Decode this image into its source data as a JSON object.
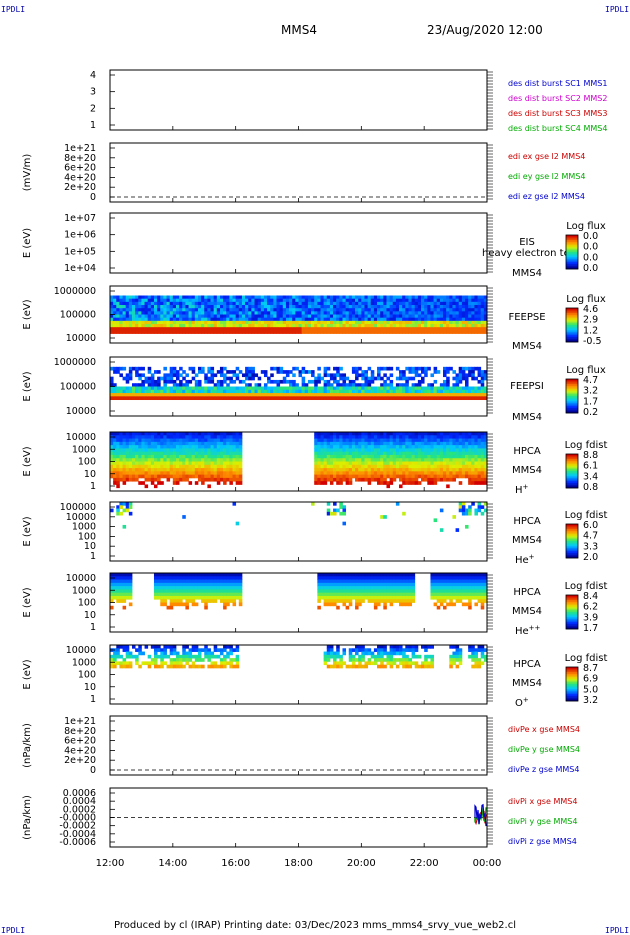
{
  "header": {
    "spacecraft": "MMS4",
    "datetime": "23/Aug/2020 12:00",
    "corner_label": "IPDLI"
  },
  "footer": {
    "text": "Produced by cl (IRAP)   Printing date: 03/Dec/2023   mms_mms4_srvy_vue_web2.cl"
  },
  "x_axis": {
    "ticks": [
      "12:00",
      "14:00",
      "16:00",
      "18:00",
      "20:00",
      "22:00",
      "00:00"
    ]
  },
  "chart_data": [
    {
      "id": "burst",
      "type": "line",
      "y_ticks": [
        "4",
        "3",
        "2",
        "1"
      ],
      "legend": [
        {
          "text": "des dist burst SC1 MMS1",
          "color": "#0000cc"
        },
        {
          "text": "des dist burst SC2 MMS2",
          "color": "#cc00cc"
        },
        {
          "text": "des dist burst SC3 MMS3",
          "color": "#cc0000"
        },
        {
          "text": "des dist burst SC4 MMS4",
          "color": "#00aa00"
        }
      ]
    },
    {
      "id": "edi",
      "type": "line",
      "ylabel": "(mV/m)",
      "y_ticks": [
        "1e+21",
        "8e+20",
        "6e+20",
        "4e+20",
        "2e+20",
        "0"
      ],
      "legend": [
        {
          "text": "edi ex gse l2 MMS4",
          "color": "#cc0000"
        },
        {
          "text": "edi ey gse l2 MMS4",
          "color": "#00aa00"
        },
        {
          "text": "edi ez gse l2 MMS4",
          "color": "#0000cc"
        }
      ]
    },
    {
      "id": "eis",
      "type": "heatmap",
      "ylabel": "E (eV)",
      "y_ticks": [
        "1e+07",
        "1e+06",
        "1e+05",
        "1e+04"
      ],
      "label": "EIS",
      "sublabel": "MMS4",
      "overlay_text": "heavy electron te",
      "colorbar": {
        "title": "Log flux",
        "ticks": [
          "0.0",
          "0.0",
          "0.0",
          "0.0"
        ]
      }
    },
    {
      "id": "feepse",
      "type": "heatmap",
      "ylabel": "E (eV)",
      "y_ticks": [
        "1000000",
        "100000",
        "10000"
      ],
      "label": "FEEPSE",
      "sublabel": "MMS4",
      "colorbar": {
        "title": "Log flux",
        "ticks": [
          "4.6",
          "2.9",
          "1.2",
          "-0.5"
        ]
      }
    },
    {
      "id": "feepsi",
      "type": "heatmap",
      "ylabel": "E (eV)",
      "y_ticks": [
        "1000000",
        "100000",
        "10000"
      ],
      "label": "FEEPSI",
      "sublabel": "MMS4",
      "colorbar": {
        "title": "Log flux",
        "ticks": [
          "4.7",
          "3.2",
          "1.7",
          "0.2"
        ]
      }
    },
    {
      "id": "hpca_h",
      "type": "heatmap",
      "ylabel": "E (eV)",
      "y_ticks": [
        "10000",
        "1000",
        "100",
        "10",
        "1"
      ],
      "label": "HPCA",
      "sublabel": "MMS4",
      "species": "H",
      "species_sup": "+",
      "colorbar": {
        "title": "Log fdist",
        "ticks": [
          "8.8",
          "6.1",
          "3.4",
          "0.8"
        ]
      }
    },
    {
      "id": "hpca_he",
      "type": "heatmap",
      "ylabel": "E (eV)",
      "y_ticks": [
        "100000",
        "10000",
        "1000",
        "100",
        "10",
        "1"
      ],
      "label": "HPCA",
      "sublabel": "MMS4",
      "species": "He",
      "species_sup": "+",
      "colorbar": {
        "title": "Log fdist",
        "ticks": [
          "6.0",
          "4.7",
          "3.3",
          "2.0"
        ]
      }
    },
    {
      "id": "hpca_he2",
      "type": "heatmap",
      "ylabel": "E (eV)",
      "y_ticks": [
        "10000",
        "1000",
        "100",
        "10",
        "1"
      ],
      "label": "HPCA",
      "sublabel": "MMS4",
      "species": "He",
      "species_sup": "++",
      "colorbar": {
        "title": "Log fdist",
        "ticks": [
          "8.4",
          "6.2",
          "3.9",
          "1.7"
        ]
      }
    },
    {
      "id": "hpca_o",
      "type": "heatmap",
      "ylabel": "E (eV)",
      "y_ticks": [
        "10000",
        "1000",
        "100",
        "10",
        "1"
      ],
      "label": "HPCA",
      "sublabel": "MMS4",
      "species": "O",
      "species_sup": "+",
      "colorbar": {
        "title": "Log fdist",
        "ticks": [
          "8.7",
          "6.9",
          "5.0",
          "3.2"
        ]
      }
    },
    {
      "id": "divpe",
      "type": "line",
      "ylabel": "(nPa/km)",
      "y_ticks": [
        "1e+21",
        "8e+20",
        "6e+20",
        "4e+20",
        "2e+20",
        "0"
      ],
      "legend": [
        {
          "text": "divPe x gse MMS4",
          "color": "#cc0000"
        },
        {
          "text": "divPe y gse MMS4",
          "color": "#00aa00"
        },
        {
          "text": "divPe z gse MMS4",
          "color": "#0000cc"
        }
      ]
    },
    {
      "id": "divpi",
      "type": "line",
      "ylabel": "(nPa/km)",
      "y_ticks": [
        "0.0006",
        "0.0004",
        "0.0002",
        "-0.0000",
        "-0.0002",
        "-0.0004",
        "-0.0006"
      ],
      "legend": [
        {
          "text": "divPi x gse MMS4",
          "color": "#cc0000"
        },
        {
          "text": "divPi y gse MMS4",
          "color": "#00aa00"
        },
        {
          "text": "divPi z gse MMS4",
          "color": "#0000cc"
        }
      ]
    }
  ]
}
